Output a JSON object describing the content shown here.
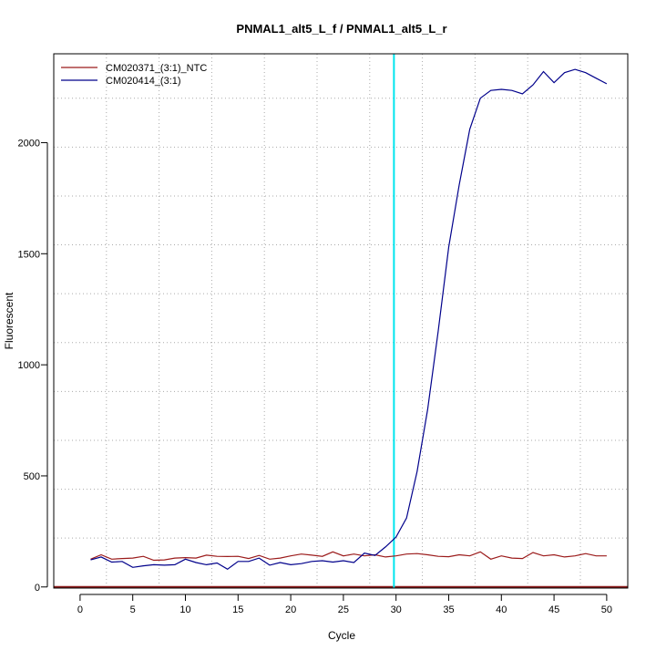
{
  "chart_data": {
    "type": "line",
    "title": "PNMAL1_alt5_L_f / PNMAL1_alt5_L_r",
    "xlabel": "Cycle",
    "ylabel": "Fluorescent",
    "xlim": [
      -2.5,
      52
    ],
    "ylim": [
      -5,
      2400
    ],
    "x_ticks": [
      0,
      5,
      10,
      15,
      20,
      25,
      30,
      35,
      40,
      45,
      50
    ],
    "y_ticks": [
      0,
      500,
      1000,
      1500,
      2000
    ],
    "x_grid": [
      2.5,
      7.5,
      12.5,
      17.5,
      22.5,
      27.5,
      32.5,
      37.5,
      42.5,
      47.5
    ],
    "y_grid": [
      -5,
      220,
      440,
      660,
      880,
      1100,
      1320,
      1540,
      1760,
      1980,
      2200
    ],
    "grid": true,
    "legend_position": "top-left",
    "threshold": {
      "x": 29.8,
      "color": "#00e5ee"
    },
    "baseline": {
      "y": 0,
      "color": "#8b1a1a"
    },
    "x": [
      1,
      2,
      3,
      4,
      5,
      6,
      7,
      8,
      9,
      10,
      11,
      12,
      13,
      14,
      15,
      16,
      17,
      18,
      19,
      20,
      21,
      22,
      23,
      24,
      25,
      26,
      27,
      28,
      29,
      30,
      31,
      32,
      33,
      34,
      35,
      36,
      37,
      38,
      39,
      40,
      41,
      42,
      43,
      44,
      45,
      46,
      47,
      48,
      49,
      50
    ],
    "series": [
      {
        "name": "CM020371_(3:1)_NTC",
        "color": "#9b1b1b",
        "values": [
          125,
          145,
          125,
          128,
          130,
          138,
          120,
          122,
          130,
          132,
          130,
          143,
          138,
          137,
          138,
          128,
          142,
          125,
          130,
          140,
          148,
          143,
          138,
          158,
          140,
          148,
          140,
          145,
          135,
          140,
          148,
          150,
          145,
          138,
          136,
          145,
          140,
          158,
          125,
          140,
          130,
          128,
          155,
          140,
          145,
          135,
          140,
          150,
          140,
          140
        ]
      },
      {
        "name": "CM020414_(3:1)",
        "color": "#00008b",
        "values": [
          122,
          135,
          112,
          115,
          88,
          95,
          100,
          98,
          100,
          125,
          110,
          100,
          108,
          80,
          115,
          115,
          130,
          98,
          110,
          100,
          105,
          115,
          118,
          112,
          118,
          110,
          152,
          142,
          180,
          225,
          310,
          520,
          800,
          1150,
          1530,
          1810,
          2060,
          2200,
          2235,
          2240,
          2235,
          2220,
          2260,
          2320,
          2270,
          2315,
          2330,
          2315,
          2290,
          2265
        ]
      }
    ]
  }
}
